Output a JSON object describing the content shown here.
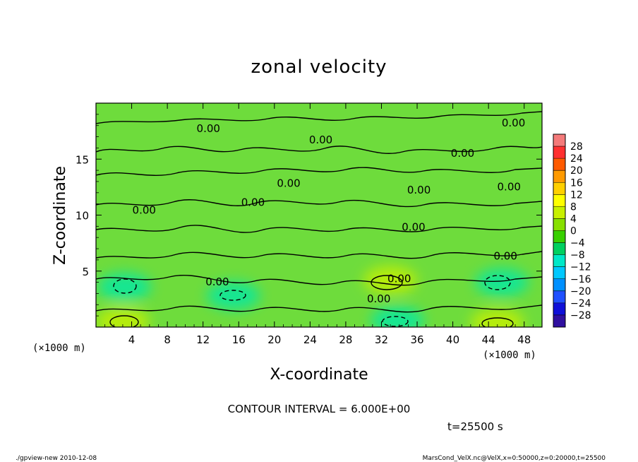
{
  "chart_data": {
    "type": "heatmap",
    "title": "zonal velocity",
    "xlabel": "X-coordinate",
    "ylabel": "Z-coordinate",
    "x_unit": "(×1000 m)",
    "y_unit": "(×1000 m)",
    "xlim": [
      0,
      50
    ],
    "ylim": [
      0,
      20
    ],
    "x_ticks": [
      4,
      8,
      12,
      16,
      20,
      24,
      28,
      32,
      36,
      40,
      44,
      48
    ],
    "y_ticks": [
      5,
      10,
      15
    ],
    "contour_interval_text": "CONTOUR INTERVAL = 6.000E+00",
    "contour_label": "0.00",
    "contour_labels": [
      {
        "x": 12.6,
        "y": 17.7,
        "text": "0.00"
      },
      {
        "x": 25.2,
        "y": 16.7,
        "text": "0.00"
      },
      {
        "x": 46.8,
        "y": 18.2,
        "text": "0.00"
      },
      {
        "x": 41.1,
        "y": 15.5,
        "text": "0.00"
      },
      {
        "x": 21.6,
        "y": 12.8,
        "text": "0.00"
      },
      {
        "x": 36.2,
        "y": 12.2,
        "text": "0.00"
      },
      {
        "x": 46.3,
        "y": 12.5,
        "text": "0.00"
      },
      {
        "x": 17.6,
        "y": 11.1,
        "text": "0.00"
      },
      {
        "x": 5.4,
        "y": 10.4,
        "text": "0.00"
      },
      {
        "x": 35.6,
        "y": 8.9,
        "text": "0.00"
      },
      {
        "x": 45.9,
        "y": 6.3,
        "text": "0.00"
      },
      {
        "x": 34.0,
        "y": 4.3,
        "text": "0.00"
      },
      {
        "x": 13.6,
        "y": 4.0,
        "text": "0.00"
      },
      {
        "x": 31.7,
        "y": 2.5,
        "text": "0.00"
      }
    ],
    "colorbar": {
      "levels": [
        28,
        24,
        20,
        16,
        12,
        8,
        4,
        0,
        -4,
        -8,
        -12,
        -16,
        -20,
        -24,
        -28
      ],
      "colors": [
        "#f47a7a",
        "#ff3030",
        "#ff5a00",
        "#ff9a00",
        "#ffd000",
        "#ffff00",
        "#c8f000",
        "#88e000",
        "#38d000",
        "#00d060",
        "#00e8c8",
        "#00c8ff",
        "#0090ff",
        "#2050ff",
        "#1010d8",
        "#3010a0"
      ]
    },
    "field_features": [
      {
        "kind": "positive",
        "x": 3.0,
        "y": 0.5
      },
      {
        "kind": "negative",
        "x": 3.2,
        "y": 3.6
      },
      {
        "kind": "negative",
        "x": 15.4,
        "y": 2.8
      },
      {
        "kind": "positive",
        "x": 33.0,
        "y": 4.2
      },
      {
        "kind": "negative",
        "x": 33.8,
        "y": 0.6
      },
      {
        "kind": "negative",
        "x": 45.5,
        "y": 4.0
      },
      {
        "kind": "positive",
        "x": 45.0,
        "y": 0.4
      }
    ]
  },
  "footer": {
    "time_text": "t=25500 s",
    "program_text": "./gpview-new  2010-12-08",
    "source_text": "MarsCond_VelX.nc@VelX,x=0:50000,z=0:20000,t=25500"
  }
}
